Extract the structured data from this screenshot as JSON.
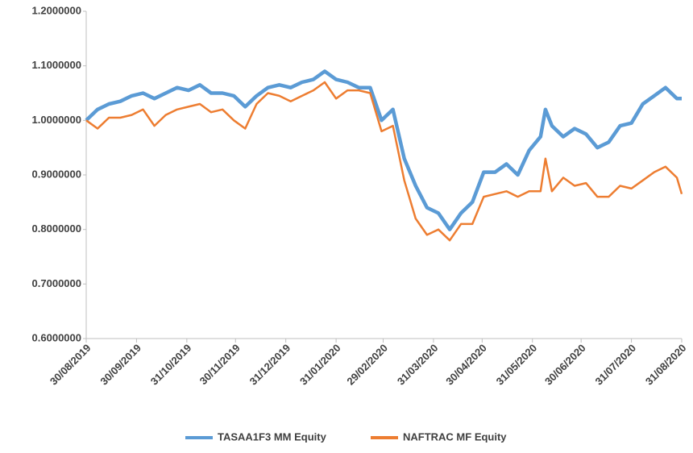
{
  "chart_data": {
    "type": "line",
    "x": [
      "30/08/2019",
      "06/09/2019",
      "13/09/2019",
      "20/09/2019",
      "27/09/2019",
      "04/10/2019",
      "11/10/2019",
      "18/10/2019",
      "25/10/2019",
      "01/11/2019",
      "08/11/2019",
      "15/11/2019",
      "22/11/2019",
      "29/11/2019",
      "06/12/2019",
      "13/12/2019",
      "20/12/2019",
      "27/12/2019",
      "03/01/2020",
      "10/01/2020",
      "17/01/2020",
      "24/01/2020",
      "31/01/2020",
      "07/02/2020",
      "14/02/2020",
      "21/02/2020",
      "28/02/2020",
      "06/03/2020",
      "13/03/2020",
      "20/03/2020",
      "27/03/2020",
      "03/04/2020",
      "10/04/2020",
      "17/04/2020",
      "24/04/2020",
      "01/05/2020",
      "08/05/2020",
      "15/05/2020",
      "22/05/2020",
      "29/05/2020",
      "05/06/2020",
      "08/06/2020",
      "12/06/2020",
      "19/06/2020",
      "26/06/2020",
      "03/07/2020",
      "10/07/2020",
      "17/07/2020",
      "24/07/2020",
      "31/07/2020",
      "07/08/2020",
      "14/08/2020",
      "21/08/2020",
      "28/08/2020",
      "31/08/2020"
    ],
    "series": [
      {
        "name": "TASAA1F3 MM Equity",
        "color": "#5b9bd5",
        "values": [
          1.0,
          1.02,
          1.03,
          1.035,
          1.045,
          1.05,
          1.04,
          1.05,
          1.06,
          1.055,
          1.065,
          1.05,
          1.05,
          1.045,
          1.025,
          1.045,
          1.06,
          1.065,
          1.06,
          1.07,
          1.075,
          1.09,
          1.075,
          1.07,
          1.06,
          1.06,
          1.0,
          1.02,
          0.93,
          0.88,
          0.84,
          0.83,
          0.8,
          0.83,
          0.85,
          0.905,
          0.905,
          0.92,
          0.9,
          0.945,
          0.97,
          1.02,
          0.99,
          0.97,
          0.985,
          0.975,
          0.95,
          0.96,
          0.99,
          0.995,
          1.03,
          1.045,
          1.06,
          1.04,
          1.04
        ]
      },
      {
        "name": "NAFTRAC MF Equity",
        "color": "#ed7d31",
        "values": [
          1.0,
          0.985,
          1.005,
          1.005,
          1.01,
          1.02,
          0.99,
          1.01,
          1.02,
          1.025,
          1.03,
          1.015,
          1.02,
          1.0,
          0.985,
          1.03,
          1.05,
          1.045,
          1.035,
          1.045,
          1.055,
          1.07,
          1.04,
          1.055,
          1.055,
          1.05,
          0.98,
          0.99,
          0.89,
          0.82,
          0.79,
          0.8,
          0.78,
          0.81,
          0.81,
          0.86,
          0.865,
          0.87,
          0.86,
          0.87,
          0.87,
          0.93,
          0.87,
          0.895,
          0.88,
          0.885,
          0.86,
          0.86,
          0.88,
          0.875,
          0.89,
          0.905,
          0.915,
          0.895,
          0.865
        ]
      }
    ],
    "ylim": [
      0.6,
      1.2
    ],
    "yticks": [
      {
        "value": 0.6,
        "label": "0.6000000"
      },
      {
        "value": 0.7,
        "label": "0.7000000"
      },
      {
        "value": 0.8,
        "label": "0.8000000"
      },
      {
        "value": 0.9,
        "label": "0.9000000"
      },
      {
        "value": 1.0,
        "label": "1.0000000"
      },
      {
        "value": 1.1,
        "label": "1.1000000"
      },
      {
        "value": 1.2,
        "label": "1.2000000"
      }
    ],
    "xlim": [
      "30/08/2019",
      "31/08/2020"
    ],
    "xticks": [
      "30/08/2019",
      "30/09/2019",
      "31/10/2019",
      "30/11/2019",
      "31/12/2019",
      "31/01/2020",
      "29/02/2020",
      "31/03/2020",
      "30/04/2020",
      "31/05/2020",
      "30/06/2020",
      "31/07/2020",
      "31/08/2020"
    ],
    "legend": "bottom"
  }
}
